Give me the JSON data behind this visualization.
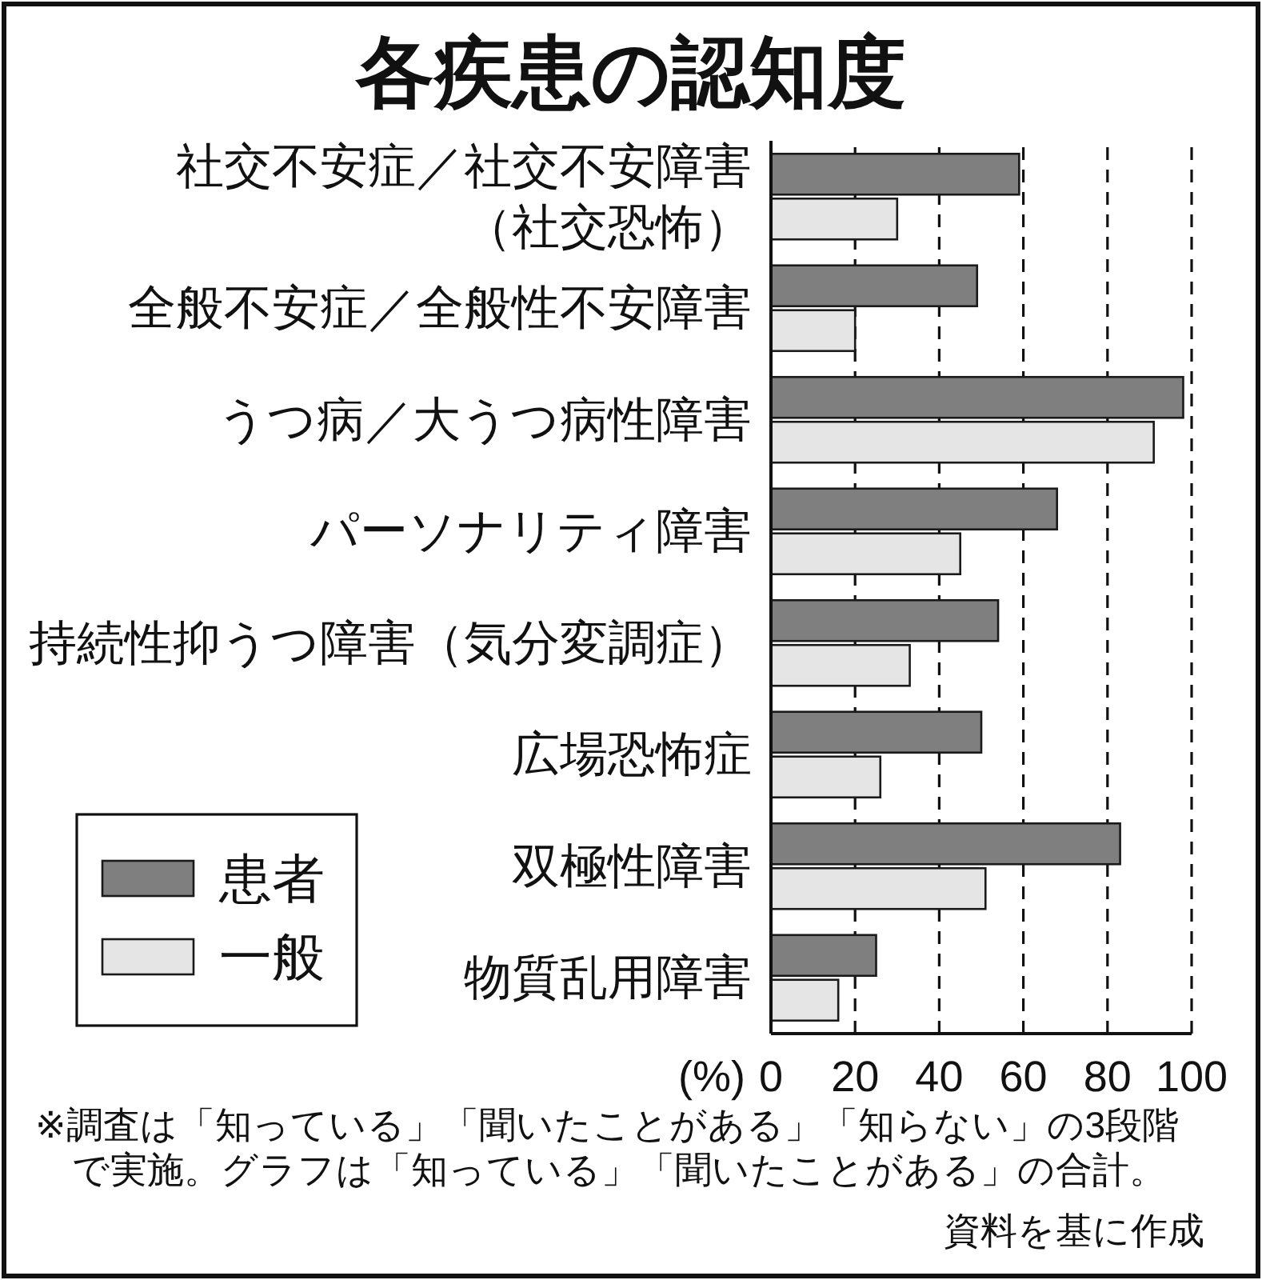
{
  "chart_data": {
    "type": "bar",
    "orientation": "horizontal",
    "title": "各疾患の認知度",
    "xlabel": "(%)",
    "categories": [
      "社交不安症／社交不安障害（社交恐怖）",
      "全般不安症／全般性不安障害",
      "うつ病／大うつ病性障害",
      "パーソナリティ障害",
      "持続性抑うつ障害（気分変調症）",
      "広場恐怖症",
      "双極性障害",
      "物質乱用障害"
    ],
    "series": [
      {
        "name": "患者",
        "color": "#7f7f7f",
        "values": [
          59,
          49,
          98,
          68,
          54,
          50,
          83,
          25
        ]
      },
      {
        "name": "一般",
        "color": "#e5e5e5",
        "values": [
          30,
          20,
          91,
          45,
          33,
          26,
          51,
          16
        ]
      }
    ],
    "xlim": [
      0,
      100
    ],
    "xticks": [
      0,
      20,
      40,
      60,
      80,
      100
    ],
    "grid": "x",
    "legend": "bottom left",
    "annotations": [
      "※調査は「知っている」「聞いたことがある」「知らない」の3段階で実施。グラフは「知っている」「聞いたことがある」の合計。",
      "資料を基に作成"
    ]
  }
}
